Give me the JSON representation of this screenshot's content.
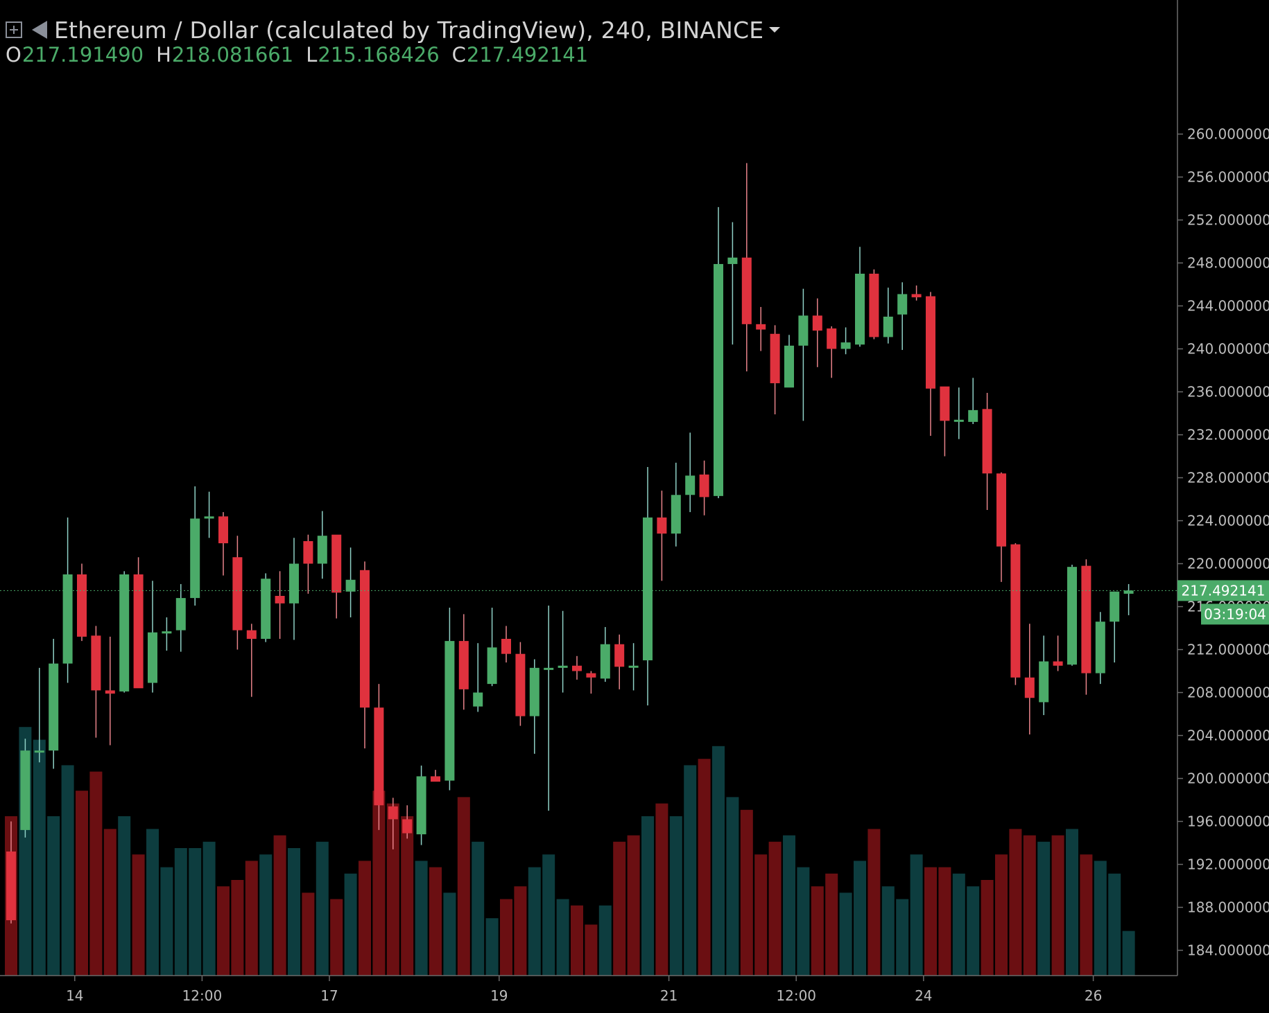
{
  "header": {
    "title": "Ethereum / Dollar (calculated by TradingView), 240, BINANCE",
    "ohlc": [
      {
        "label": "O",
        "value": "217.191490"
      },
      {
        "label": "H",
        "value": "218.081661"
      },
      {
        "label": "L",
        "value": "215.168426"
      },
      {
        "label": "C",
        "value": "217.492141"
      }
    ]
  },
  "colors": {
    "background": "#000000",
    "up": "#4bab69",
    "down": "#e0323e",
    "volume_up": "#0d3d3f",
    "volume_down": "#6b0f12",
    "axis_text": "#bdbdbd",
    "price_label": "#4bab69"
  },
  "price_label": {
    "price": "217.492141",
    "countdown": "03:19:04"
  },
  "chart_data": {
    "type": "candlestick",
    "title": "Ethereum / Dollar (calculated by TradingView), 240, BINANCE",
    "ylim": [
      181.9,
      261.3
    ],
    "y_ticks": [
      {
        "value": 184,
        "label": "184.000000"
      },
      {
        "value": 188,
        "label": "188.000000"
      },
      {
        "value": 192,
        "label": "192.000000"
      },
      {
        "value": 196,
        "label": "196.000000"
      },
      {
        "value": 200,
        "label": "200.000000"
      },
      {
        "value": 204,
        "label": "204.000000"
      },
      {
        "value": 208,
        "label": "208.000000"
      },
      {
        "value": 212,
        "label": "212.000000"
      },
      {
        "value": 216,
        "label": "216.000000"
      },
      {
        "value": 220,
        "label": "220.000000"
      },
      {
        "value": 224,
        "label": "224.000000"
      },
      {
        "value": 228,
        "label": "228.000000"
      },
      {
        "value": 232,
        "label": "232.000000"
      },
      {
        "value": 236,
        "label": "236.000000"
      },
      {
        "value": 240,
        "label": "240.000000"
      },
      {
        "value": 244,
        "label": "244.000000"
      },
      {
        "value": 248,
        "label": "248.000000"
      },
      {
        "value": 252,
        "label": "252.000000"
      },
      {
        "value": 256,
        "label": "256.000000"
      },
      {
        "value": 260,
        "label": "260.000000"
      }
    ],
    "x_ticks": [
      {
        "index": 4.5,
        "label": "14"
      },
      {
        "index": 13.5,
        "label": "12:00"
      },
      {
        "index": 22.5,
        "label": "17"
      },
      {
        "index": 34.5,
        "label": "19"
      },
      {
        "index": 46.5,
        "label": "21"
      },
      {
        "index": 55.5,
        "label": "12:00"
      },
      {
        "index": 64.5,
        "label": "24"
      },
      {
        "index": 76.5,
        "label": "26"
      }
    ],
    "last_price": 217.492141,
    "candles": [
      [
        193.2,
        196.0,
        186.5,
        186.8
      ],
      [
        195.2,
        203.7,
        194.5,
        202.6
      ],
      [
        202.5,
        210.3,
        201.5,
        202.6
      ],
      [
        202.6,
        213.0,
        200.9,
        210.7
      ],
      [
        210.7,
        224.3,
        208.9,
        219.0
      ],
      [
        219.0,
        220.0,
        212.8,
        213.2
      ],
      [
        213.3,
        214.2,
        203.8,
        208.2
      ],
      [
        208.2,
        213.2,
        203.1,
        207.9
      ],
      [
        208.1,
        219.3,
        208.0,
        219.0
      ],
      [
        219.0,
        220.6,
        208.7,
        208.4
      ],
      [
        208.9,
        218.4,
        208.0,
        213.6
      ],
      [
        213.5,
        215.0,
        211.9,
        213.7
      ],
      [
        213.8,
        218.1,
        211.8,
        216.8
      ],
      [
        216.8,
        227.2,
        216.1,
        224.2
      ],
      [
        224.2,
        226.7,
        222.4,
        224.4
      ],
      [
        224.4,
        224.8,
        218.9,
        221.9
      ],
      [
        220.6,
        222.6,
        212.0,
        213.8
      ],
      [
        213.8,
        214.4,
        207.6,
        213.0
      ],
      [
        213.0,
        219.1,
        212.7,
        218.6
      ],
      [
        217.0,
        219.3,
        213.0,
        216.3
      ],
      [
        216.3,
        222.4,
        212.9,
        220.0
      ],
      [
        222.1,
        222.7,
        217.2,
        220.0
      ],
      [
        220.0,
        224.9,
        218.6,
        222.6
      ],
      [
        222.7,
        222.3,
        214.9,
        217.3
      ],
      [
        217.4,
        221.5,
        215.0,
        218.5
      ],
      [
        219.4,
        220.2,
        202.8,
        206.6
      ],
      [
        206.6,
        208.8,
        195.2,
        197.5
      ],
      [
        197.4,
        198.2,
        193.4,
        196.2
      ],
      [
        196.2,
        197.5,
        194.4,
        194.9
      ],
      [
        194.8,
        201.2,
        193.8,
        200.2
      ],
      [
        200.2,
        200.8,
        199.8,
        199.7
      ],
      [
        199.8,
        215.9,
        198.9,
        212.8
      ],
      [
        212.8,
        215.3,
        206.4,
        208.3
      ],
      [
        206.7,
        212.6,
        206.2,
        208.0
      ],
      [
        208.8,
        215.9,
        208.6,
        212.2
      ],
      [
        213.0,
        214.2,
        210.8,
        211.6
      ],
      [
        211.6,
        212.7,
        204.9,
        205.8
      ],
      [
        205.8,
        211.1,
        202.3,
        210.3
      ],
      [
        210.3,
        216.1,
        197.0,
        210.3
      ],
      [
        210.3,
        215.6,
        208.0,
        210.5
      ],
      [
        210.5,
        211.4,
        209.2,
        210.0
      ],
      [
        209.8,
        210.0,
        207.9,
        209.4
      ],
      [
        209.3,
        214.1,
        209.0,
        212.5
      ],
      [
        212.5,
        213.4,
        208.3,
        210.4
      ],
      [
        210.4,
        212.6,
        208.2,
        210.5
      ],
      [
        211.0,
        229.0,
        206.8,
        224.3
      ],
      [
        224.3,
        226.8,
        218.4,
        222.8
      ],
      [
        222.8,
        229.4,
        221.6,
        226.4
      ],
      [
        226.4,
        232.2,
        224.8,
        228.2
      ],
      [
        228.3,
        229.6,
        224.5,
        226.2
      ],
      [
        226.3,
        253.2,
        226.1,
        247.9
      ],
      [
        247.9,
        251.8,
        240.4,
        248.5
      ],
      [
        248.5,
        257.3,
        237.9,
        242.3
      ],
      [
        242.3,
        243.9,
        239.8,
        241.8
      ],
      [
        241.4,
        242.2,
        233.9,
        236.8
      ],
      [
        236.4,
        241.3,
        236.5,
        240.3
      ],
      [
        240.3,
        245.6,
        233.3,
        243.1
      ],
      [
        243.1,
        244.7,
        238.3,
        241.7
      ],
      [
        241.9,
        242.1,
        237.3,
        240.0
      ],
      [
        240.0,
        242.0,
        239.5,
        240.6
      ],
      [
        240.4,
        249.5,
        240.2,
        247.0
      ],
      [
        247.0,
        247.4,
        240.9,
        241.1
      ],
      [
        241.1,
        245.7,
        240.5,
        243.0
      ],
      [
        243.2,
        246.2,
        239.9,
        245.1
      ],
      [
        245.1,
        245.9,
        244.5,
        244.8
      ],
      [
        244.9,
        245.3,
        231.9,
        236.3
      ],
      [
        236.5,
        236.3,
        230.0,
        233.3
      ],
      [
        233.3,
        236.4,
        231.6,
        233.4
      ],
      [
        233.2,
        237.3,
        233.0,
        234.3
      ],
      [
        234.4,
        235.9,
        225.0,
        228.4
      ],
      [
        228.4,
        228.5,
        218.3,
        221.6
      ],
      [
        221.8,
        221.9,
        208.7,
        209.4
      ],
      [
        209.4,
        214.4,
        204.1,
        207.5
      ],
      [
        207.1,
        213.3,
        205.9,
        210.9
      ],
      [
        210.9,
        213.3,
        210.0,
        210.5
      ],
      [
        210.6,
        219.9,
        210.5,
        219.7
      ],
      [
        219.8,
        220.4,
        207.8,
        209.8
      ],
      [
        209.8,
        215.5,
        208.8,
        214.6
      ],
      [
        214.6,
        217.4,
        210.8,
        217.4
      ],
      [
        217.2,
        218.1,
        215.2,
        217.5
      ]
    ],
    "volume": [
      25,
      39,
      37,
      25,
      33,
      29,
      32,
      23,
      25,
      19,
      23,
      17,
      20,
      20,
      21,
      14,
      15,
      18,
      19,
      22,
      20,
      13,
      21,
      12,
      16,
      18,
      29,
      27,
      25,
      18,
      17,
      13,
      28,
      21,
      9,
      12,
      14,
      17,
      19,
      12,
      11,
      8,
      11,
      21,
      22,
      25,
      27,
      25,
      33,
      34,
      36,
      28,
      26,
      19,
      21,
      22,
      17,
      14,
      16,
      13,
      18,
      23,
      14,
      12,
      19,
      17,
      17,
      16,
      14,
      15,
      19,
      23,
      22,
      21,
      22,
      23,
      19,
      18,
      16,
      7
    ],
    "volume_colors": [
      "down",
      "up",
      "up",
      "up",
      "up",
      "down",
      "down",
      "down",
      "up",
      "down",
      "up",
      "up",
      "up",
      "up",
      "up",
      "down",
      "down",
      "down",
      "up",
      "down",
      "up",
      "down",
      "up",
      "down",
      "up",
      "down",
      "down",
      "down",
      "down",
      "up",
      "down",
      "up",
      "down",
      "up",
      "up",
      "down",
      "down",
      "up",
      "up",
      "up",
      "down",
      "down",
      "up",
      "down",
      "down",
      "up",
      "down",
      "up",
      "up",
      "down",
      "up",
      "up",
      "down",
      "down",
      "down",
      "up",
      "up",
      "down",
      "down",
      "up",
      "up",
      "down",
      "up",
      "up",
      "up",
      "down",
      "down",
      "up",
      "up",
      "down",
      "down",
      "down",
      "down",
      "up",
      "down",
      "up",
      "down",
      "up",
      "up",
      "up"
    ],
    "grid": false,
    "legend": "none"
  }
}
